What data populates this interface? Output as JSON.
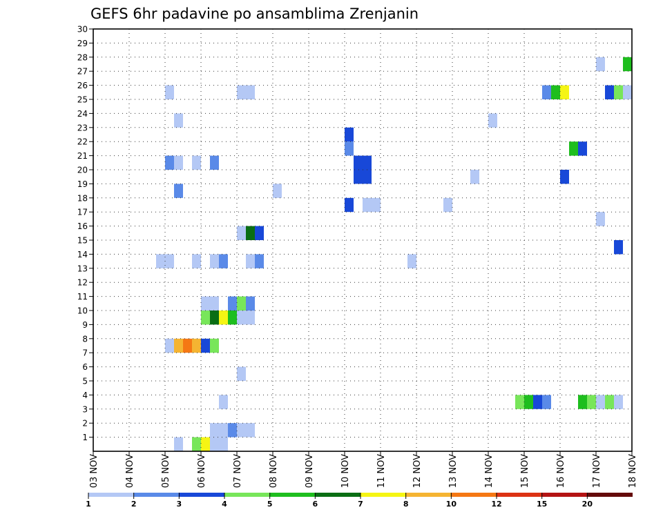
{
  "chart_data": {
    "type": "heatmap",
    "title": "GEFS 6hr padavine po ansamblima Zrenjanin",
    "x_tick_labels": [
      "03 NOV",
      "04 NOV",
      "05 NOV",
      "06 NOV",
      "07 NOV",
      "08 NOV",
      "09 NOV",
      "10 NOV",
      "11 NOV",
      "12 NOV",
      "13 NOV",
      "14 NOV",
      "15 NOV",
      "16 NOV",
      "17 NOV",
      "18 NOV"
    ],
    "x_range_days": [
      0,
      15
    ],
    "y_tick_labels": [
      "1",
      "2",
      "3",
      "4",
      "5",
      "6",
      "7",
      "8",
      "9",
      "10",
      "11",
      "12",
      "13",
      "14",
      "15",
      "16",
      "17",
      "18",
      "19",
      "20",
      "21",
      "22",
      "23",
      "24",
      "25",
      "26",
      "27",
      "28",
      "29",
      "30"
    ],
    "y_range": [
      0,
      30
    ],
    "grid": true,
    "color_scale": {
      "labels": [
        "1",
        "2",
        "3",
        "4",
        "5",
        "6",
        "7",
        "8",
        "10",
        "12",
        "15",
        "20"
      ],
      "colors": [
        "#b4c8f5",
        "#5a8ae8",
        "#1848d8",
        "#78e65a",
        "#1ebe1e",
        "#0a6e14",
        "#f5f514",
        "#f5b432",
        "#f57814",
        "#dc3214",
        "#b41414",
        "#640a0a"
      ]
    },
    "cells": [
      {
        "x": 2.0,
        "y": 26,
        "c": 0
      },
      {
        "x": 4.0,
        "y": 26,
        "c": 0
      },
      {
        "x": 4.25,
        "y": 26,
        "c": 0
      },
      {
        "x": 12.5,
        "y": 26,
        "c": 1
      },
      {
        "x": 12.75,
        "y": 26,
        "c": 4
      },
      {
        "x": 13.0,
        "y": 26,
        "c": 6
      },
      {
        "x": 14.25,
        "y": 26,
        "c": 2
      },
      {
        "x": 14.5,
        "y": 26,
        "c": 3
      },
      {
        "x": 14.75,
        "y": 26,
        "c": 0
      },
      {
        "x": 14.0,
        "y": 28,
        "c": 0
      },
      {
        "x": 14.75,
        "y": 28,
        "c": 4
      },
      {
        "x": 2.25,
        "y": 24,
        "c": 0
      },
      {
        "x": 11.0,
        "y": 24,
        "c": 0
      },
      {
        "x": 7.0,
        "y": 23,
        "c": 2
      },
      {
        "x": 7.0,
        "y": 22,
        "c": 1
      },
      {
        "x": 13.25,
        "y": 22,
        "c": 4
      },
      {
        "x": 13.5,
        "y": 22,
        "c": 2
      },
      {
        "x": 2.0,
        "y": 21,
        "c": 1
      },
      {
        "x": 2.25,
        "y": 21,
        "c": 0
      },
      {
        "x": 2.75,
        "y": 21,
        "c": 0
      },
      {
        "x": 3.25,
        "y": 21,
        "c": 1
      },
      {
        "x": 7.25,
        "y": 21,
        "c": 2
      },
      {
        "x": 7.5,
        "y": 21,
        "c": 2
      },
      {
        "x": 7.25,
        "y": 20,
        "c": 2
      },
      {
        "x": 7.5,
        "y": 20,
        "c": 2
      },
      {
        "x": 10.5,
        "y": 20,
        "c": 0
      },
      {
        "x": 13.0,
        "y": 20,
        "c": 2
      },
      {
        "x": 2.25,
        "y": 19,
        "c": 1
      },
      {
        "x": 5.0,
        "y": 19,
        "c": 0
      },
      {
        "x": 7.0,
        "y": 18,
        "c": 2
      },
      {
        "x": 7.5,
        "y": 18,
        "c": 0
      },
      {
        "x": 7.75,
        "y": 18,
        "c": 0
      },
      {
        "x": 9.75,
        "y": 18,
        "c": 0
      },
      {
        "x": 14.0,
        "y": 17,
        "c": 0
      },
      {
        "x": 4.0,
        "y": 16,
        "c": 0
      },
      {
        "x": 4.25,
        "y": 16,
        "c": 5
      },
      {
        "x": 4.5,
        "y": 16,
        "c": 2
      },
      {
        "x": 14.5,
        "y": 15,
        "c": 2
      },
      {
        "x": 1.75,
        "y": 14,
        "c": 0
      },
      {
        "x": 2.0,
        "y": 14,
        "c": 0
      },
      {
        "x": 2.75,
        "y": 14,
        "c": 0
      },
      {
        "x": 3.25,
        "y": 14,
        "c": 0
      },
      {
        "x": 3.5,
        "y": 14,
        "c": 1
      },
      {
        "x": 4.25,
        "y": 14,
        "c": 0
      },
      {
        "x": 4.5,
        "y": 14,
        "c": 1
      },
      {
        "x": 8.75,
        "y": 14,
        "c": 0
      },
      {
        "x": 3.0,
        "y": 11,
        "c": 0
      },
      {
        "x": 3.25,
        "y": 11,
        "c": 0
      },
      {
        "x": 3.75,
        "y": 11,
        "c": 1
      },
      {
        "x": 4.0,
        "y": 11,
        "c": 3
      },
      {
        "x": 4.25,
        "y": 11,
        "c": 1
      },
      {
        "x": 3.0,
        "y": 10,
        "c": 3
      },
      {
        "x": 3.25,
        "y": 10,
        "c": 5
      },
      {
        "x": 3.5,
        "y": 10,
        "c": 6
      },
      {
        "x": 3.75,
        "y": 10,
        "c": 4
      },
      {
        "x": 4.0,
        "y": 10,
        "c": 0
      },
      {
        "x": 4.25,
        "y": 10,
        "c": 0
      },
      {
        "x": 2.0,
        "y": 8,
        "c": 0
      },
      {
        "x": 2.25,
        "y": 8,
        "c": 7
      },
      {
        "x": 2.5,
        "y": 8,
        "c": 8
      },
      {
        "x": 2.75,
        "y": 8,
        "c": 7
      },
      {
        "x": 3.0,
        "y": 8,
        "c": 2
      },
      {
        "x": 3.25,
        "y": 8,
        "c": 3
      },
      {
        "x": 4.0,
        "y": 6,
        "c": 0
      },
      {
        "x": 3.5,
        "y": 4,
        "c": 0
      },
      {
        "x": 11.75,
        "y": 4,
        "c": 3
      },
      {
        "x": 12.0,
        "y": 4,
        "c": 4
      },
      {
        "x": 12.25,
        "y": 4,
        "c": 2
      },
      {
        "x": 12.5,
        "y": 4,
        "c": 1
      },
      {
        "x": 13.5,
        "y": 4,
        "c": 4
      },
      {
        "x": 13.75,
        "y": 4,
        "c": 3
      },
      {
        "x": 14.0,
        "y": 4,
        "c": 0
      },
      {
        "x": 14.25,
        "y": 4,
        "c": 3
      },
      {
        "x": 14.5,
        "y": 4,
        "c": 0
      },
      {
        "x": 3.25,
        "y": 2,
        "c": 0
      },
      {
        "x": 3.5,
        "y": 2,
        "c": 0
      },
      {
        "x": 3.75,
        "y": 2,
        "c": 1
      },
      {
        "x": 4.0,
        "y": 2,
        "c": 0
      },
      {
        "x": 4.25,
        "y": 2,
        "c": 0
      },
      {
        "x": 3.25,
        "y": 1,
        "c": 0
      },
      {
        "x": 3.5,
        "y": 1,
        "c": 0
      },
      {
        "x": 2.25,
        "y": 1,
        "c": 0
      },
      {
        "x": 2.75,
        "y": 1,
        "c": 3
      },
      {
        "x": 3.0,
        "y": 1,
        "c": 6
      }
    ]
  }
}
